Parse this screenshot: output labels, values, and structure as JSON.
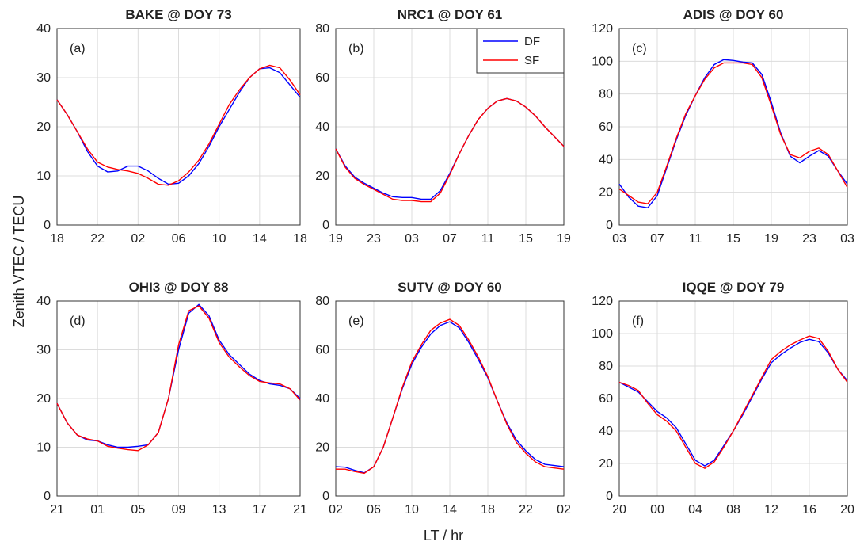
{
  "ylabel": "Zenith VTEC / TECU",
  "xlabel": "LT / hr",
  "chart_data": [
    {
      "type": "line",
      "title": "BAKE @ DOY 73",
      "annotation": "(a)",
      "grid": true,
      "x": [
        18,
        19,
        20,
        21,
        22,
        23,
        24,
        25,
        26,
        27,
        28,
        29,
        30,
        31,
        32,
        33,
        34,
        35,
        36,
        37,
        38,
        39,
        40,
        41,
        42
      ],
      "xlim": [
        18,
        42
      ],
      "xticks": [
        18,
        22,
        {
          "value": 26,
          "label": "02"
        },
        {
          "value": 30,
          "label": "06"
        },
        {
          "value": 34,
          "label": "10"
        },
        {
          "value": 38,
          "label": "14"
        },
        {
          "value": 42,
          "label": "18"
        }
      ],
      "ylim": [
        0,
        40
      ],
      "yticks": [
        0,
        10,
        20,
        30,
        40
      ],
      "series": [
        {
          "name": "DF",
          "color": "#0000ff",
          "values": [
            25.5,
            22.5,
            19,
            15,
            12,
            10.8,
            11,
            12,
            12,
            11,
            9.5,
            8.3,
            8.5,
            10,
            12.5,
            16,
            20,
            23.5,
            27,
            30,
            31.8,
            32,
            31,
            28.5,
            26
          ]
        },
        {
          "name": "SF",
          "color": "#ff0000",
          "values": [
            25.5,
            22.5,
            19,
            15.5,
            12.8,
            11.8,
            11.3,
            11,
            10.5,
            9.5,
            8.3,
            8.1,
            9,
            10.8,
            13.2,
            16.5,
            20.5,
            24.5,
            27.5,
            30,
            31.8,
            32.5,
            32,
            29.5,
            26.5
          ]
        }
      ]
    },
    {
      "type": "line",
      "title": "NRC1 @ DOY 61",
      "annotation": "(b)",
      "grid": true,
      "legend": "upper right",
      "x": [
        19,
        20,
        21,
        22,
        23,
        24,
        25,
        26,
        27,
        28,
        29,
        30,
        31,
        32,
        33,
        34,
        35,
        36,
        37,
        38,
        39,
        40,
        41,
        42,
        43
      ],
      "xlim": [
        19,
        43
      ],
      "xticks": [
        19,
        23,
        {
          "value": 27,
          "label": "03"
        },
        {
          "value": 31,
          "label": "07"
        },
        {
          "value": 35,
          "label": "11"
        },
        {
          "value": 39,
          "label": "15"
        },
        {
          "value": 43,
          "label": "19"
        }
      ],
      "ylim": [
        0,
        80
      ],
      "yticks": [
        0,
        20,
        40,
        60,
        80
      ],
      "series": [
        {
          "name": "DF",
          "color": "#0000ff",
          "values": [
            31,
            24,
            19.5,
            17,
            15,
            13,
            11.5,
            11.2,
            11.2,
            10.5,
            10.5,
            14,
            21,
            29,
            36.5,
            43,
            47.5,
            50.5,
            51.5,
            50.5,
            48,
            44.5,
            40,
            36,
            32
          ]
        },
        {
          "name": "SF",
          "color": "#ff0000",
          "values": [
            31,
            23.5,
            19,
            16.5,
            14.5,
            12.5,
            10.5,
            10,
            10,
            9.5,
            9.5,
            13,
            20.5,
            29,
            36.5,
            43,
            47.5,
            50.5,
            51.5,
            50.5,
            48,
            44.5,
            40,
            36,
            32
          ]
        }
      ]
    },
    {
      "type": "line",
      "title": "ADIS @ DOY 60",
      "annotation": "(c)",
      "grid": true,
      "x": [
        27,
        28,
        29,
        30,
        31,
        32,
        33,
        34,
        35,
        36,
        37,
        38,
        39,
        40,
        41,
        42,
        43,
        44,
        45,
        46,
        47,
        48,
        49,
        50,
        51
      ],
      "xlim": [
        27,
        51
      ],
      "xticks": [
        {
          "value": 27,
          "label": "03"
        },
        {
          "value": 31,
          "label": "07"
        },
        {
          "value": 35,
          "label": "11"
        },
        {
          "value": 39,
          "label": "15"
        },
        {
          "value": 43,
          "label": "19"
        },
        {
          "value": 47,
          "label": "23"
        },
        {
          "value": 51,
          "label": "03"
        }
      ],
      "ylim": [
        0,
        120
      ],
      "yticks": [
        0,
        20,
        40,
        60,
        80,
        100,
        120
      ],
      "series": [
        {
          "name": "DF",
          "color": "#0000ff",
          "values": [
            25,
            17,
            11.5,
            10.5,
            18,
            35,
            52,
            67,
            79,
            90,
            98,
            101,
            100.5,
            99.5,
            99,
            92,
            75,
            56,
            42,
            38,
            42,
            45.5,
            42,
            33,
            25
          ]
        },
        {
          "name": "SF",
          "color": "#ff0000",
          "values": [
            22,
            18,
            14,
            13,
            20,
            36,
            53,
            68,
            79,
            89,
            96,
            99,
            99,
            99,
            98,
            90,
            73,
            55,
            43,
            41,
            45,
            47,
            43,
            33,
            23
          ]
        }
      ]
    },
    {
      "type": "line",
      "title": "OHI3 @ DOY 88",
      "annotation": "(d)",
      "grid": true,
      "x": [
        21,
        22,
        23,
        24,
        25,
        26,
        27,
        28,
        29,
        30,
        31,
        32,
        33,
        34,
        35,
        36,
        37,
        38,
        39,
        40,
        41,
        42,
        43,
        44,
        45
      ],
      "xlim": [
        21,
        45
      ],
      "xticks": [
        21,
        {
          "value": 25,
          "label": "01"
        },
        {
          "value": 29,
          "label": "05"
        },
        {
          "value": 33,
          "label": "09"
        },
        {
          "value": 37,
          "label": "13"
        },
        {
          "value": 41,
          "label": "17"
        },
        {
          "value": 45,
          "label": "21"
        }
      ],
      "ylim": [
        0,
        40
      ],
      "yticks": [
        0,
        10,
        20,
        30,
        40
      ],
      "series": [
        {
          "name": "DF",
          "color": "#0000ff",
          "values": [
            19,
            15,
            12.5,
            11.5,
            11.3,
            10.5,
            10,
            10,
            10.2,
            10.5,
            13,
            20,
            30,
            37.5,
            39.3,
            37,
            32,
            29,
            27,
            25,
            23.7,
            23,
            22.7,
            22,
            20
          ]
        },
        {
          "name": "SF",
          "color": "#ff0000",
          "values": [
            19,
            15,
            12.5,
            11.7,
            11.3,
            10.2,
            9.8,
            9.5,
            9.3,
            10.5,
            13,
            20,
            31,
            38,
            39,
            36.5,
            31.5,
            28.5,
            26.5,
            24.7,
            23.5,
            23.2,
            23,
            22,
            19.7
          ]
        }
      ]
    },
    {
      "type": "line",
      "title": "SUTV @ DOY 60",
      "annotation": "(e)",
      "grid": true,
      "x": [
        26,
        27,
        28,
        29,
        30,
        31,
        32,
        33,
        34,
        35,
        36,
        37,
        38,
        39,
        40,
        41,
        42,
        43,
        44,
        45,
        46,
        47,
        48,
        49,
        50
      ],
      "xlim": [
        26,
        50
      ],
      "xticks": [
        {
          "value": 26,
          "label": "02"
        },
        {
          "value": 30,
          "label": "06"
        },
        {
          "value": 34,
          "label": "10"
        },
        {
          "value": 38,
          "label": "14"
        },
        {
          "value": 42,
          "label": "18"
        },
        {
          "value": 46,
          "label": "22"
        },
        {
          "value": 50,
          "label": "02"
        }
      ],
      "ylim": [
        0,
        80
      ],
      "yticks": [
        0,
        20,
        40,
        60,
        80
      ],
      "series": [
        {
          "name": "DF",
          "color": "#0000ff",
          "values": [
            12,
            11.8,
            10.5,
            9.5,
            12,
            20,
            32,
            44,
            54,
            61,
            66.5,
            70,
            71.5,
            69,
            63,
            56,
            48.5,
            39,
            30,
            23,
            18.5,
            15,
            13,
            12.5,
            12
          ]
        },
        {
          "name": "SF",
          "color": "#ff0000",
          "values": [
            11,
            11,
            10,
            9.3,
            12,
            20,
            32,
            44.5,
            55,
            62,
            68,
            71,
            72.5,
            70,
            64,
            57,
            49,
            39,
            29.5,
            22,
            17.5,
            14,
            12,
            11.5,
            11
          ]
        }
      ]
    },
    {
      "type": "line",
      "title": "IQQE @ DOY 79",
      "annotation": "(f)",
      "grid": true,
      "x": [
        20,
        21,
        22,
        23,
        24,
        25,
        26,
        27,
        28,
        29,
        30,
        31,
        32,
        33,
        34,
        35,
        36,
        37,
        38,
        39,
        40,
        41,
        42,
        43,
        44
      ],
      "xlim": [
        20,
        44
      ],
      "xticks": [
        20,
        {
          "value": 24,
          "label": "00"
        },
        {
          "value": 28,
          "label": "04"
        },
        {
          "value": 32,
          "label": "08"
        },
        {
          "value": 36,
          "label": "12"
        },
        {
          "value": 40,
          "label": "16"
        },
        {
          "value": 44,
          "label": "20"
        }
      ],
      "ylim": [
        0,
        120
      ],
      "yticks": [
        0,
        20,
        40,
        60,
        80,
        100,
        120
      ],
      "series": [
        {
          "name": "DF",
          "color": "#0000ff",
          "values": [
            70,
            67,
            64,
            58,
            52,
            48,
            42,
            32,
            22,
            18.5,
            22,
            31,
            40,
            50,
            61,
            72,
            82,
            87,
            91,
            94.5,
            96.5,
            95,
            88,
            78,
            71
          ]
        },
        {
          "name": "SF",
          "color": "#ff0000",
          "values": [
            70,
            68,
            65,
            57,
            50,
            46,
            40,
            30,
            20,
            17,
            21,
            30,
            40,
            51,
            62,
            73,
            84,
            89,
            93,
            96,
            98.5,
            97,
            89,
            78,
            70
          ]
        }
      ]
    }
  ]
}
